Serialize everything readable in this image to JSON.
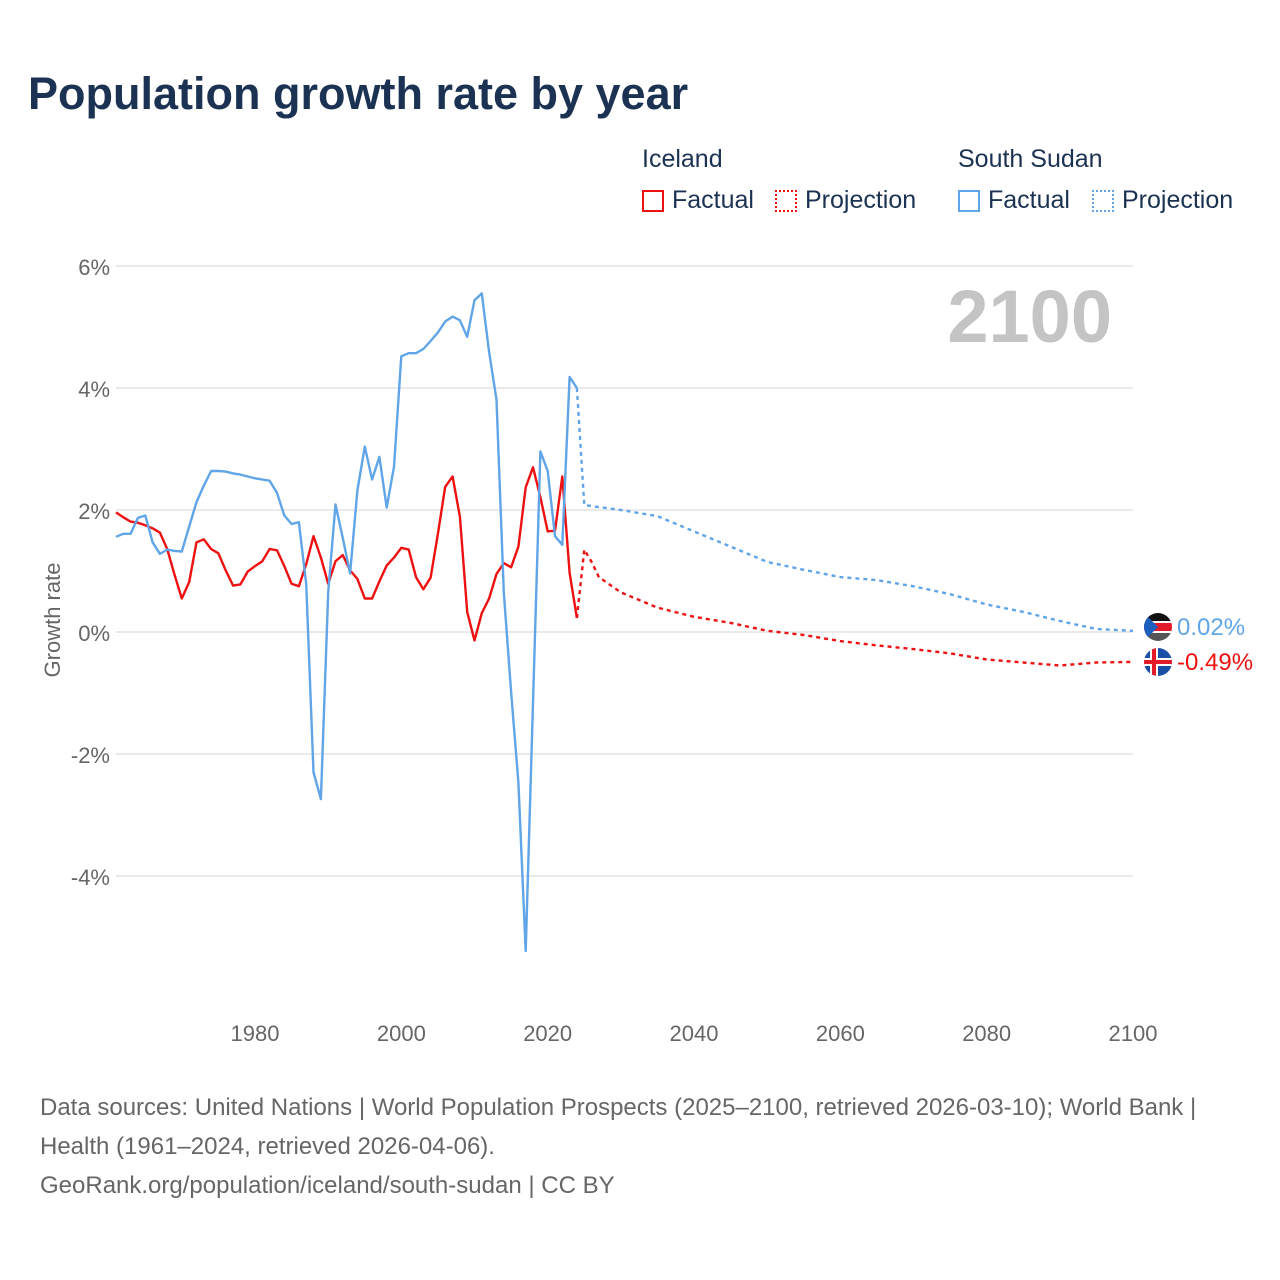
{
  "title": "Population growth rate by year",
  "legend": {
    "groups": [
      {
        "name": "Iceland",
        "factual": "Factual",
        "projection": "Projection",
        "color": "#ee1111"
      },
      {
        "name": "South Sudan",
        "factual": "Factual",
        "projection": "Projection",
        "color": "#5fa5e8"
      }
    ]
  },
  "year_watermark": "2100",
  "end_labels": {
    "south_sudan": "0.02%",
    "iceland": "-0.49%"
  },
  "footer": {
    "line1": "Data sources: United Nations | World Population Prospects (2025–2100, retrieved 2026-03-10); World Bank | Health (1961–2024, retrieved 2026-04-06).",
    "line2": "GeoRank.org/population/iceland/south-sudan | CC BY"
  },
  "chart_data": {
    "type": "line",
    "title": "Population growth rate by year",
    "xlabel": "",
    "ylabel": "Growth rate",
    "xlim": [
      1961,
      2100
    ],
    "ylim": [
      -5.5,
      6.3
    ],
    "xticks": [
      1980,
      2000,
      2020,
      2040,
      2060,
      2080,
      2100
    ],
    "yticks": [
      {
        "v": 6,
        "label": "6%"
      },
      {
        "v": 4,
        "label": "4%"
      },
      {
        "v": 2,
        "label": "2%"
      },
      {
        "v": 0,
        "label": "0%"
      },
      {
        "v": -2,
        "label": "-2%"
      },
      {
        "v": -4,
        "label": "-4%"
      }
    ],
    "grid": true,
    "legend_placement": "top-right",
    "factual_start": 1961,
    "series": [
      {
        "name": "Iceland Factual",
        "country": "Iceland",
        "kind": "factual",
        "color": "#ee1111",
        "values": [
          1.96,
          1.88,
          1.81,
          1.79,
          1.75,
          1.7,
          1.63,
          1.36,
          0.94,
          0.55,
          0.82,
          1.47,
          1.52,
          1.36,
          1.29,
          1.01,
          0.76,
          0.78,
          0.99,
          1.08,
          1.16,
          1.36,
          1.34,
          1.08,
          0.79,
          0.75,
          1.11,
          1.57,
          1.22,
          0.79,
          1.16,
          1.26,
          1.01,
          0.87,
          0.55,
          0.55,
          0.83,
          1.09,
          1.22,
          1.38,
          1.35,
          0.9,
          0.7,
          0.89,
          1.61,
          2.38,
          2.55,
          1.89,
          0.33,
          -0.14,
          0.31,
          0.55,
          0.95,
          1.13,
          1.06,
          1.4,
          2.37,
          2.7,
          2.21,
          1.65,
          1.66,
          2.55,
          0.97,
          0.23
        ]
      },
      {
        "name": "South Sudan Factual",
        "country": "South Sudan",
        "kind": "factual",
        "color": "#5fa5e8",
        "values": [
          1.56,
          1.61,
          1.61,
          1.87,
          1.91,
          1.47,
          1.28,
          1.35,
          1.33,
          1.32,
          1.73,
          2.13,
          2.4,
          2.64,
          2.64,
          2.63,
          2.6,
          2.58,
          2.55,
          2.52,
          2.5,
          2.48,
          2.28,
          1.91,
          1.77,
          1.8,
          0.79,
          -2.3,
          -2.74,
          0.65,
          2.09,
          1.54,
          0.96,
          2.32,
          3.04,
          2.5,
          2.87,
          2.04,
          2.71,
          4.52,
          4.57,
          4.57,
          4.64,
          4.77,
          4.91,
          5.09,
          5.17,
          5.11,
          4.84,
          5.44,
          5.55,
          4.59,
          3.81,
          0.65,
          -0.98,
          -2.47,
          -5.23,
          -1.16,
          2.96,
          2.64,
          1.57,
          1.43,
          4.18,
          4.0
        ]
      },
      {
        "name": "Iceland Projection",
        "country": "Iceland",
        "kind": "projection",
        "color": "#ee1111",
        "x": [
          2024,
          2025,
          2026,
          2027,
          2030,
          2035,
          2040,
          2045,
          2050,
          2055,
          2060,
          2065,
          2070,
          2075,
          2080,
          2085,
          2090,
          2095,
          2100
        ],
        "values": [
          0.23,
          1.35,
          1.15,
          0.9,
          0.65,
          0.4,
          0.25,
          0.15,
          0.02,
          -0.05,
          -0.15,
          -0.22,
          -0.28,
          -0.35,
          -0.45,
          -0.5,
          -0.55,
          -0.5,
          -0.49
        ]
      },
      {
        "name": "South Sudan Projection",
        "country": "South Sudan",
        "kind": "projection",
        "color": "#5fa5e8",
        "x": [
          2024,
          2025,
          2030,
          2035,
          2040,
          2045,
          2050,
          2055,
          2060,
          2065,
          2070,
          2075,
          2080,
          2085,
          2090,
          2095,
          2100
        ],
        "values": [
          4.0,
          2.08,
          2.0,
          1.9,
          1.65,
          1.4,
          1.15,
          1.02,
          0.9,
          0.85,
          0.75,
          0.62,
          0.45,
          0.33,
          0.18,
          0.05,
          0.02
        ]
      }
    ]
  }
}
